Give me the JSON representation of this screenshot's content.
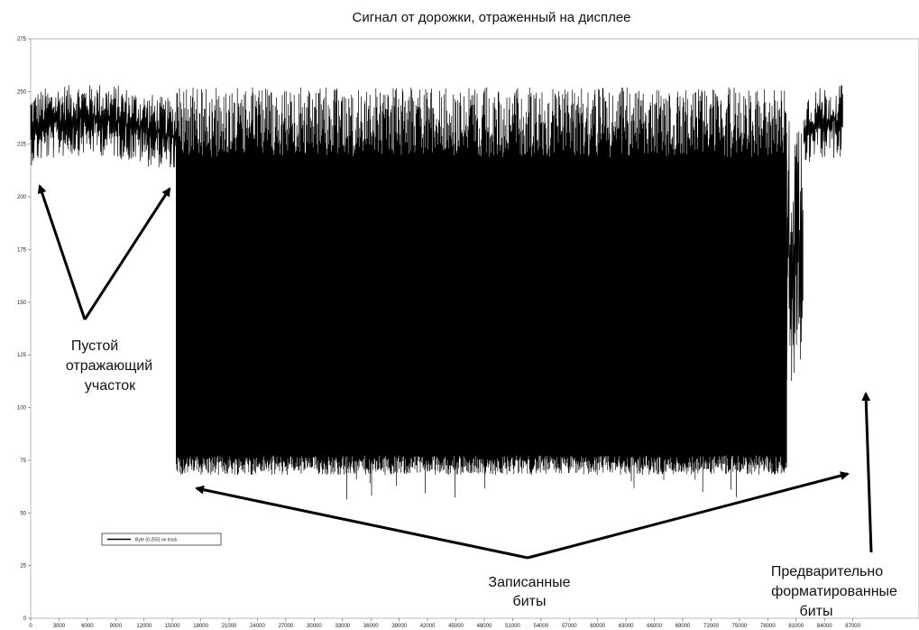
{
  "chart_data": {
    "type": "line",
    "title": "Сигнал от дорожки, отраженный на дисплее",
    "xlabel": "",
    "ylabel": "",
    "xlim": [
      0,
      94000
    ],
    "ylim": [
      0,
      275
    ],
    "y_ticks": [
      0,
      25,
      50,
      75,
      100,
      125,
      150,
      175,
      200,
      225,
      250,
      275
    ],
    "x_ticks": [
      0,
      3000,
      6000,
      9000,
      12000,
      15000,
      18000,
      21000,
      24000,
      27000,
      30000,
      33000,
      36000,
      39000,
      42000,
      45000,
      48000,
      51000,
      54000,
      57000,
      60000,
      63000,
      66000,
      69000,
      72000,
      75000,
      78000,
      81000,
      84000,
      87000
    ],
    "x_tick_labels": [
      "0",
      "3000",
      "6000",
      "9000",
      "12000",
      "15000",
      "18000",
      "21000",
      "24000",
      "27000",
      "30000",
      "33000",
      "36000",
      "39000",
      "42000",
      "45000",
      "48000",
      "51000",
      "54000",
      "57000",
      "60000",
      "63000",
      "66000",
      "69000",
      "72000",
      "75000",
      "78000",
      "81000",
      "84000",
      "87000"
    ],
    "grid": false,
    "legend_position": "lower-left",
    "series": [
      {
        "name": "Byte (0-255) on track",
        "color": "#000000",
        "segments": [
          {
            "region": "blank",
            "x_range": [
              0,
              15400
            ],
            "y_low": 218,
            "y_high": 250
          },
          {
            "region": "recorded",
            "x_range": [
              15400,
              80000
            ],
            "y_low": 68,
            "y_high": 252
          },
          {
            "region": "preformatted",
            "x_range": [
              80000,
              81800
            ],
            "y_low": 115,
            "y_high": 238
          },
          {
            "region": "blank",
            "x_range": [
              81800,
              86000
            ],
            "y_low": 218,
            "y_high": 250
          }
        ]
      }
    ],
    "annotations": [
      {
        "lines": [
          "Пустой",
          "отражающий",
          "участок"
        ]
      },
      {
        "lines": [
          "Записанные",
          "биты"
        ]
      },
      {
        "lines": [
          "Предварительно",
          "форматированные",
          "биты"
        ]
      }
    ]
  }
}
